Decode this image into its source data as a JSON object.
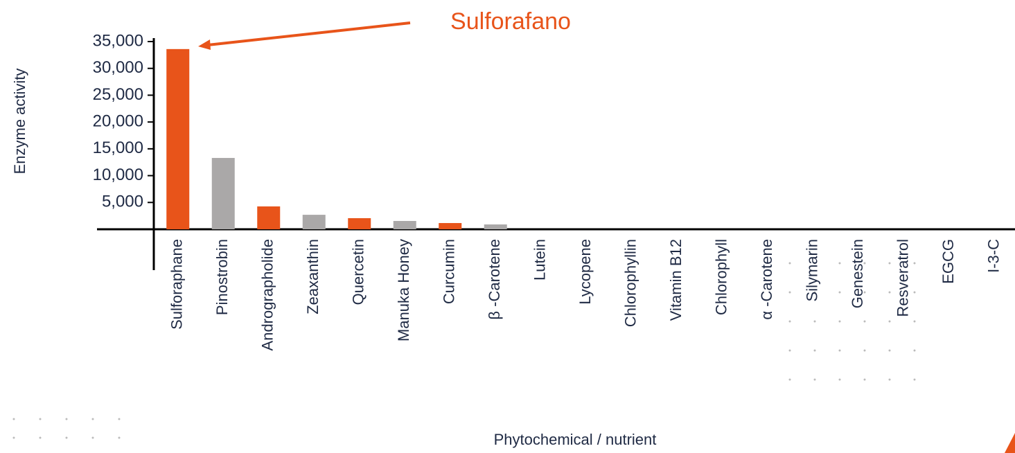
{
  "chart_data": {
    "type": "bar",
    "y_label": "Enzyme activity",
    "x_label": "Phytochemical / nutrient",
    "annotation": "Sulforafano",
    "categories": [
      "Sulforaphane",
      "Pinostrobin",
      "Andrographolide",
      "Zeaxanthin",
      "Quercetin",
      "Manuka Honey",
      "Curcumin",
      "β -Carotene",
      "Lutein",
      "Lycopene",
      "Chlorophyllin",
      "Vitamin B12",
      "Chlorophyll",
      "α -Carotene",
      "Silymarin",
      "Genestein",
      "Resveratrol",
      "EGCG",
      "I-3-C"
    ],
    "values": [
      33600,
      13300,
      4260,
      2700,
      2070,
      1550,
      1160,
      900,
      0,
      0,
      0,
      0,
      0,
      0,
      0,
      0,
      0,
      0,
      0
    ],
    "colors": [
      "#e8541a",
      "#aaa8a8",
      "#e8541a",
      "#aaa8a8",
      "#e8541a",
      "#aaa8a8",
      "#e8541a",
      "#aaa8a8",
      "#aaa8a8",
      "#aaa8a8",
      "#aaa8a8",
      "#aaa8a8",
      "#aaa8a8",
      "#aaa8a8",
      "#aaa8a8",
      "#aaa8a8",
      "#aaa8a8",
      "#aaa8a8",
      "#aaa8a8"
    ],
    "ylim": [
      0,
      35000
    ],
    "yticks": [
      {
        "value": 5000,
        "label": "5,000"
      },
      {
        "value": 10000,
        "label": "10,000"
      },
      {
        "value": 15000,
        "label": "15,000"
      },
      {
        "value": 20000,
        "label": "20,000"
      },
      {
        "value": 25000,
        "label": "25,000"
      },
      {
        "value": 30000,
        "label": "30,000"
      },
      {
        "value": 35000,
        "label": "35,000"
      }
    ]
  }
}
